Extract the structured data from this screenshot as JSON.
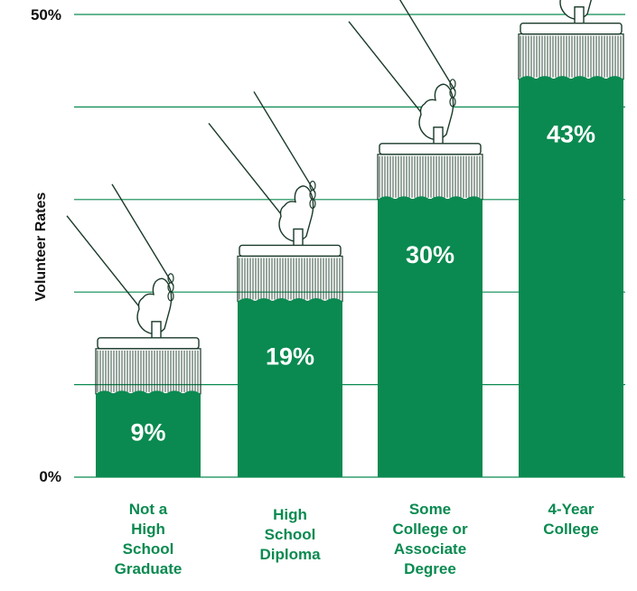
{
  "chart_data": {
    "type": "bar",
    "title": "",
    "xlabel": "",
    "ylabel": "Volunteer Rates",
    "ylim": [
      0,
      50
    ],
    "y_tick_labels": [
      "0%",
      "50%"
    ],
    "categories": [
      [
        "Not a",
        "High",
        "School",
        "Graduate"
      ],
      [
        "High",
        "School",
        "Diploma"
      ],
      [
        "Some",
        "College or",
        "Associate",
        "Degree"
      ],
      [
        "4-Year",
        "College"
      ]
    ],
    "values": [
      9,
      19,
      30,
      43
    ],
    "value_labels": [
      "9%",
      "19%",
      "30%",
      "43%"
    ],
    "grid": true,
    "colors": {
      "bar": "#0a8a50",
      "category_text": "#0a8a50",
      "grid": "#0a8a50",
      "line_art": "#1a3a2a"
    }
  }
}
